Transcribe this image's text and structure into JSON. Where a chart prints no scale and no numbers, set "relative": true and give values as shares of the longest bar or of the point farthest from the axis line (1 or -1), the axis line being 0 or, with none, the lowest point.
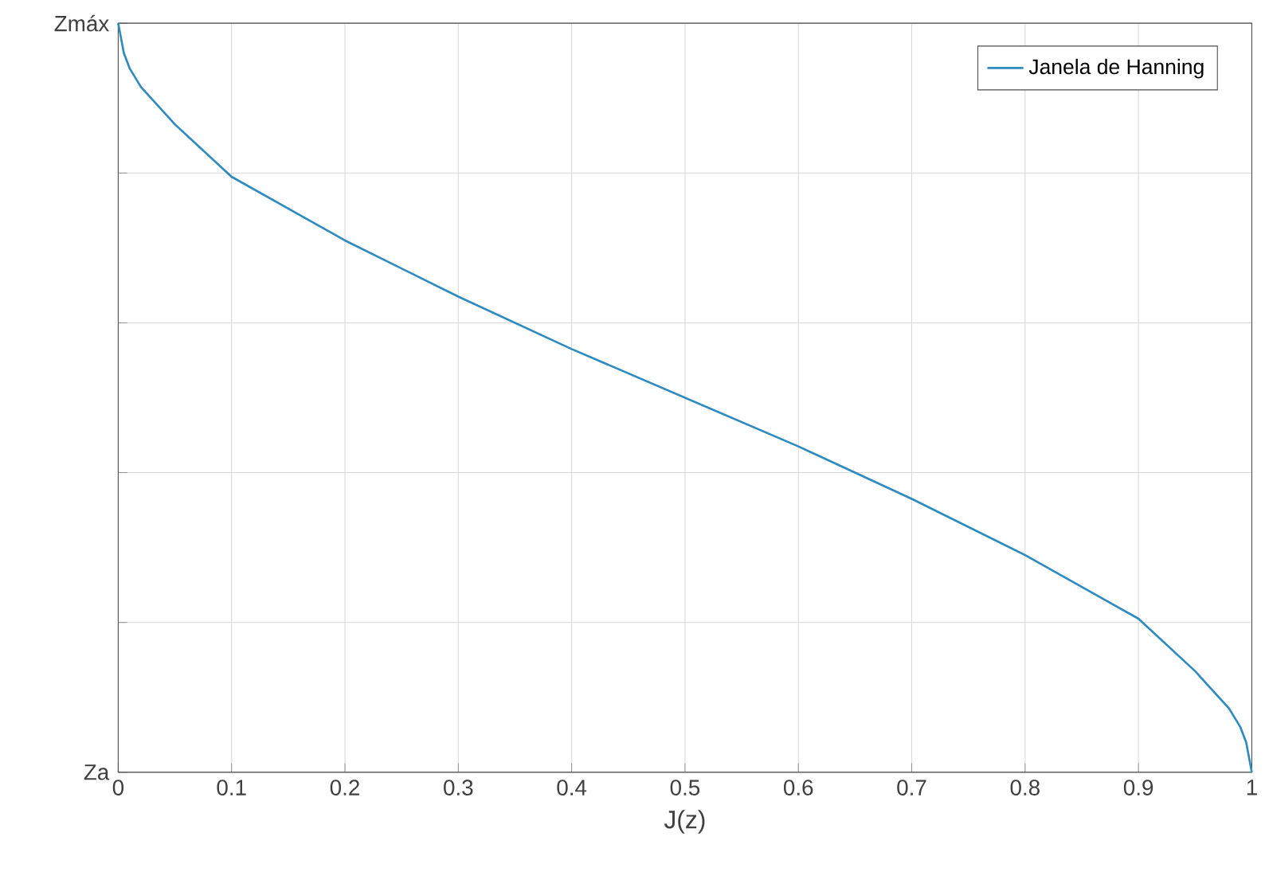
{
  "chart_data": {
    "type": "line",
    "xlabel": "J(z)",
    "x": [
      0,
      0.005,
      0.01,
      0.02,
      0.05,
      0.1,
      0.2,
      0.3,
      0.4,
      0.5,
      0.6,
      0.7,
      0.8,
      0.9,
      0.95,
      0.98,
      0.99,
      0.995,
      1
    ],
    "series": [
      {
        "name": "Janela de Hanning",
        "color": "#2e8bc0",
        "values": [
          1,
          0.96,
          0.94,
          0.915,
          0.865,
          0.795,
          0.71,
          0.635,
          0.565,
          0.5,
          0.435,
          0.365,
          0.29,
          0.205,
          0.135,
          0.085,
          0.06,
          0.04,
          0
        ]
      }
    ],
    "xlim": [
      0,
      1
    ],
    "xticks": [
      0,
      0.1,
      0.2,
      0.3,
      0.4,
      0.5,
      0.6,
      0.7,
      0.8,
      0.9,
      1
    ],
    "relative": true,
    "annotations": [
      "Za",
      "Zmáx"
    ],
    "grid": true,
    "legend": "top right",
    "marker": "none",
    "line_style": "solid"
  }
}
